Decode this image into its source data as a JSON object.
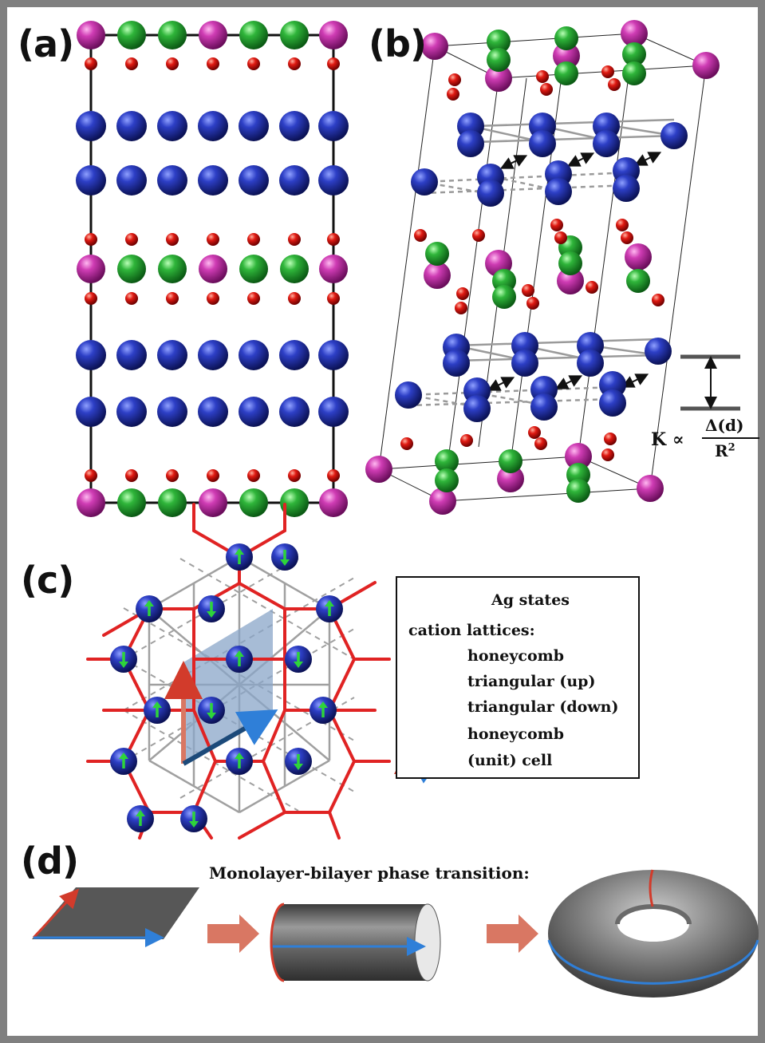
{
  "panels": {
    "a": "(a)",
    "b": "(b)",
    "c": "(c)",
    "d": "(d)"
  },
  "formula": {
    "lhs": "K ∝",
    "numerator": "Δ(d)",
    "denominator": "R",
    "exponent": "2"
  },
  "legend": {
    "ag_states": "Ag states",
    "cation_lattices": "cation lattices:",
    "honeycomb": "honeycomb",
    "triangular_up": "triangular (up)",
    "triangular_down": "triangular (down)",
    "cell_line1": "honeycomb",
    "cell_line2": "(unit) cell"
  },
  "panel_d": {
    "title": "Monolayer-bilayer phase transition:"
  },
  "colors": {
    "ag_blue": "#1e2b8f",
    "magenta": "#c02fa8",
    "green": "#23a32c",
    "oxygen_red": "#d81010",
    "honeycomb_red": "#e02323",
    "triangular_gray": "#9a9a9a",
    "cell_blue": "#7f9dc0",
    "arrow_salmon": "#d97763",
    "arrow_navy": "#1c4a7a",
    "surface_gray": "#565656",
    "border_gray": "#808080"
  }
}
